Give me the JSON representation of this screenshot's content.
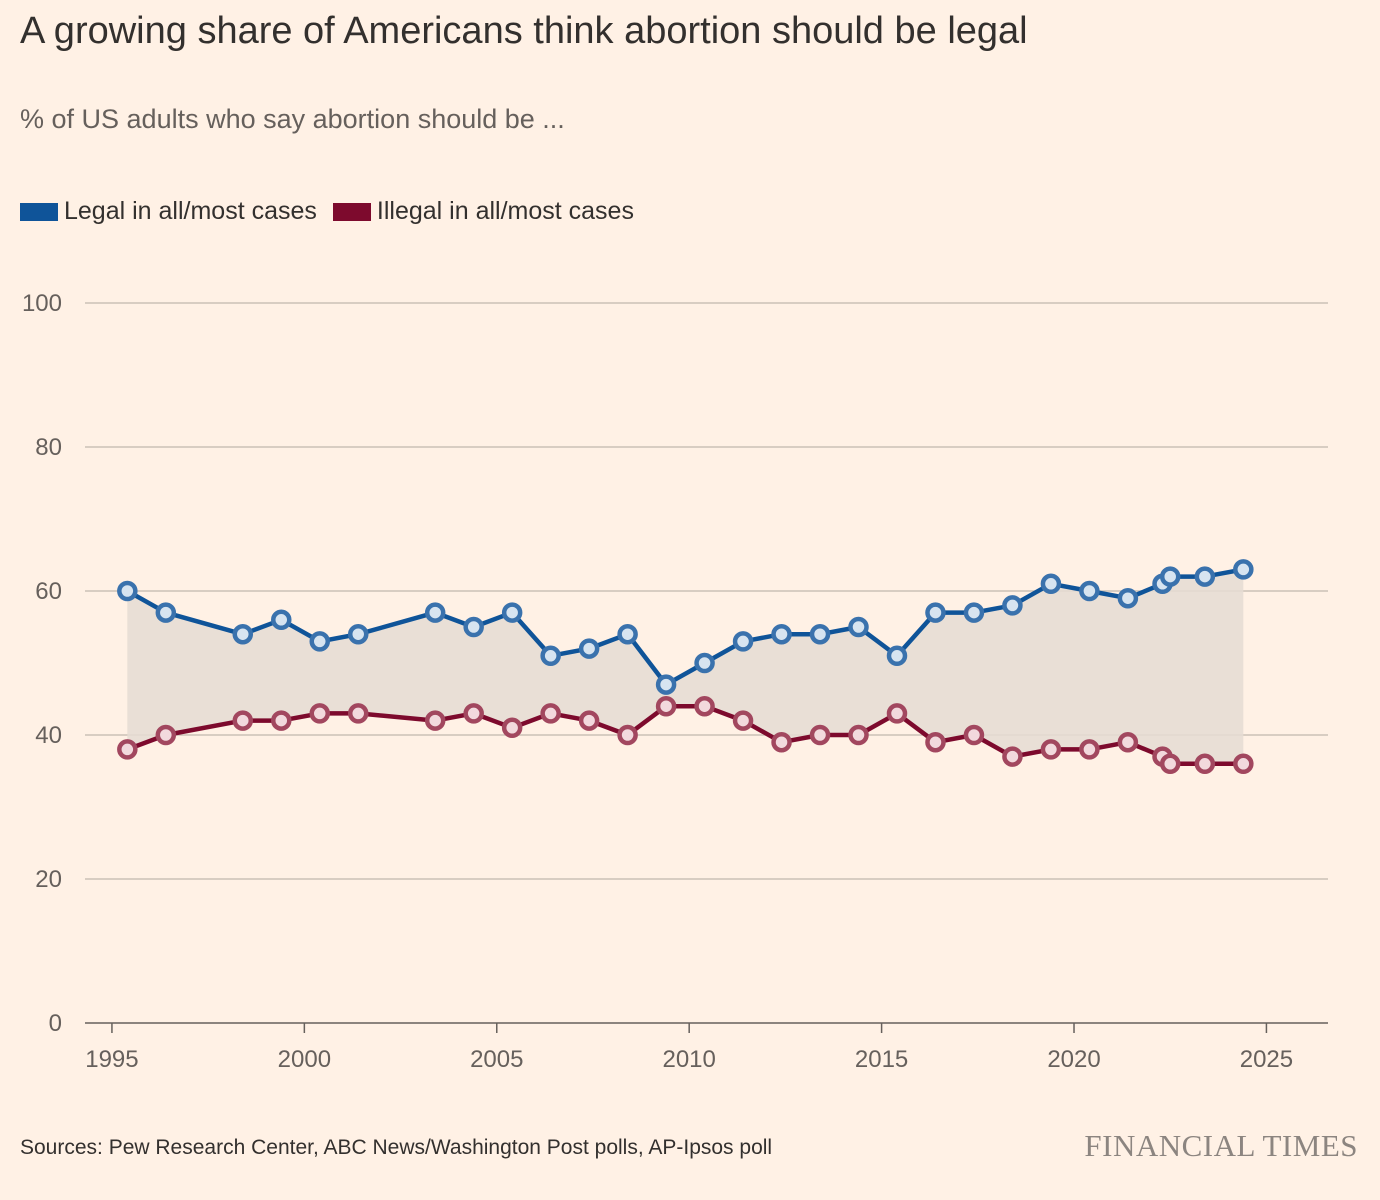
{
  "title": "A growing share of Americans think abortion should be legal",
  "subtitle": "% of US adults who say abortion should be ...",
  "source": "Sources: Pew Research Center, ABC News/Washington Post polls, AP-Ipsos poll",
  "brand": "FINANCIAL TIMES",
  "colors": {
    "background": "#fff1e5",
    "legal": "#0f5499",
    "illegal": "#7d0a2d",
    "gap_fill": "#e5dcd3",
    "grid": "#ccc1b7"
  },
  "chart_data": {
    "type": "line",
    "ylim": [
      0,
      100
    ],
    "yticks": [
      0,
      20,
      40,
      60,
      80,
      100
    ],
    "xlim": [
      1994.3,
      2026.6
    ],
    "xticks": [
      1995,
      2000,
      2005,
      2010,
      2015,
      2020,
      2025
    ],
    "fill_between_series": true,
    "grid": true,
    "legend_position": "top-left",
    "series": [
      {
        "name": "Legal in all/most cases",
        "color": "#0f5499",
        "points": [
          [
            1995.4,
            60
          ],
          [
            1996.4,
            57
          ],
          [
            1998.4,
            54
          ],
          [
            1999.4,
            56
          ],
          [
            2000.4,
            53
          ],
          [
            2001.4,
            54
          ],
          [
            2003.4,
            57
          ],
          [
            2004.4,
            55
          ],
          [
            2005.4,
            57
          ],
          [
            2006.4,
            51
          ],
          [
            2007.4,
            52
          ],
          [
            2008.4,
            54
          ],
          [
            2009.4,
            47
          ],
          [
            2010.4,
            50
          ],
          [
            2011.4,
            53
          ],
          [
            2012.4,
            54
          ],
          [
            2013.4,
            54
          ],
          [
            2014.4,
            55
          ],
          [
            2015.4,
            51
          ],
          [
            2016.4,
            57
          ],
          [
            2017.4,
            57
          ],
          [
            2018.4,
            58
          ],
          [
            2019.4,
            61
          ],
          [
            2020.4,
            60
          ],
          [
            2021.4,
            59
          ],
          [
            2022.3,
            61
          ],
          [
            2022.5,
            62
          ],
          [
            2023.4,
            62
          ],
          [
            2024.4,
            63
          ]
        ]
      },
      {
        "name": "Illegal in all/most cases",
        "color": "#7d0a2d",
        "points": [
          [
            1995.4,
            38
          ],
          [
            1996.4,
            40
          ],
          [
            1998.4,
            42
          ],
          [
            1999.4,
            42
          ],
          [
            2000.4,
            43
          ],
          [
            2001.4,
            43
          ],
          [
            2003.4,
            42
          ],
          [
            2004.4,
            43
          ],
          [
            2005.4,
            41
          ],
          [
            2006.4,
            43
          ],
          [
            2007.4,
            42
          ],
          [
            2008.4,
            40
          ],
          [
            2009.4,
            44
          ],
          [
            2010.4,
            44
          ],
          [
            2011.4,
            42
          ],
          [
            2012.4,
            39
          ],
          [
            2013.4,
            40
          ],
          [
            2014.4,
            40
          ],
          [
            2015.4,
            43
          ],
          [
            2016.4,
            39
          ],
          [
            2017.4,
            40
          ],
          [
            2018.4,
            37
          ],
          [
            2019.4,
            38
          ],
          [
            2020.4,
            38
          ],
          [
            2021.4,
            39
          ],
          [
            2022.3,
            37
          ],
          [
            2022.5,
            36
          ],
          [
            2023.4,
            36
          ],
          [
            2024.4,
            36
          ]
        ]
      }
    ]
  }
}
